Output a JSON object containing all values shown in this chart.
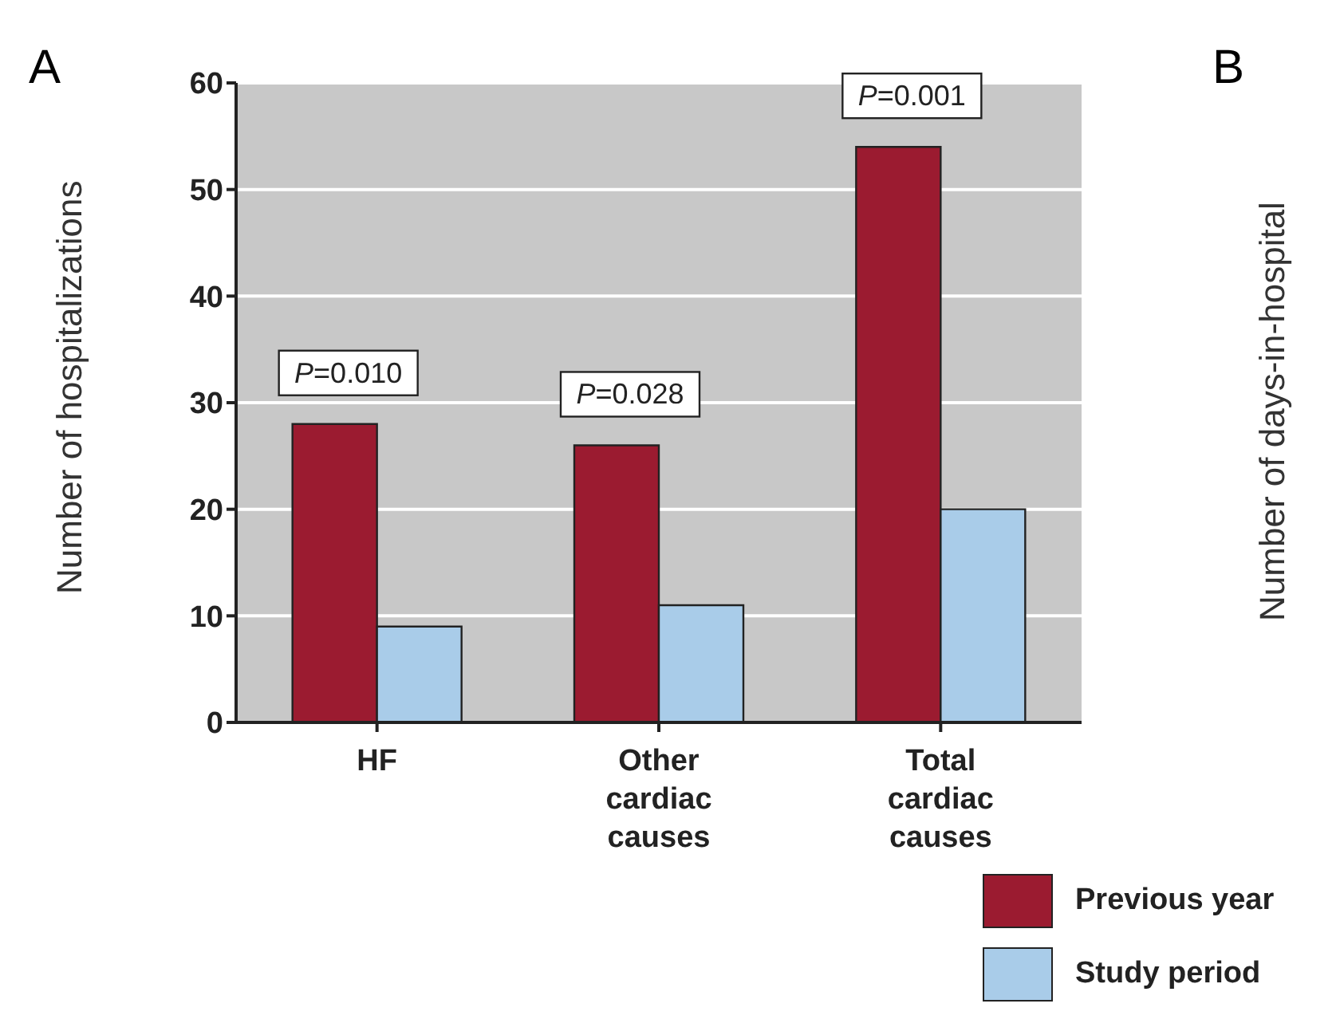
{
  "chart_data": {
    "type": "bar",
    "ylabel": "Number of hospitalizations",
    "categories": [
      "HF",
      "Other cardiac causes",
      "Total cardiac causes"
    ],
    "series": [
      {
        "name": "Previous year",
        "color": "#9b1b30",
        "values": [
          28,
          26,
          54
        ]
      },
      {
        "name": "Study period",
        "color": "#a9cce9",
        "values": [
          9,
          11,
          20
        ]
      }
    ],
    "ylim": [
      0,
      60
    ],
    "yticks": [
      0,
      10,
      20,
      30,
      40,
      50,
      60
    ],
    "grid": "y",
    "legend": "bottom right",
    "annotations": [
      "A",
      "B",
      "Number of days-in-hospital",
      "P=0.010",
      "P=0.028",
      "P=0.001"
    ]
  }
}
